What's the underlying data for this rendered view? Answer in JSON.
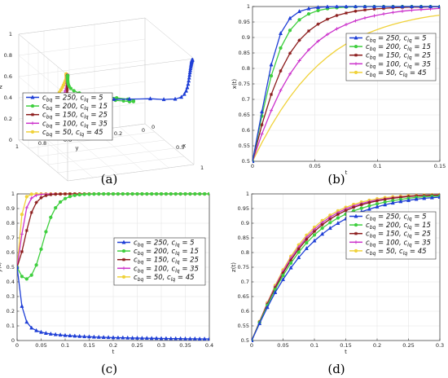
{
  "colors": {
    "s250": "#1f3fd6",
    "s200": "#3fcf3f",
    "s150": "#8b1a1a",
    "s100": "#cc33cc",
    "s50": "#f0d23a",
    "axis": "#444444",
    "grid": "#e2e2e2"
  },
  "legend_entries": [
    "c_bq = 250,  c_lq = 5",
    "c_bq = 200,  c_lq = 15",
    "c_bq = 150,  c_lq = 25",
    "c_bq = 100,  c_lq = 35",
    "c_bq = 50,  c_lq = 45"
  ],
  "chart_data": [
    {
      "panel": "(a)",
      "type": "line",
      "projection": "3d",
      "xlabel": "x",
      "ylabel": "y",
      "zlabel": "z",
      "xlim": [
        0,
        1
      ],
      "ylim": [
        0,
        1
      ],
      "zlim": [
        0,
        1
      ],
      "xticks": [
        "0",
        "0.5",
        "1"
      ],
      "yticks": [
        "1",
        "0.8",
        "0.6",
        "0.4",
        "0.2",
        "0"
      ],
      "zticks": [
        "0",
        "0.2",
        "0.4",
        "0.6",
        "0.8",
        "1"
      ],
      "legend_position": "lower-left",
      "start_point": [
        0.5,
        0.5,
        0.5
      ],
      "end_points": {
        "250": [
          1,
          0,
          1
        ],
        "200": [
          1,
          1,
          1
        ],
        "150": [
          1,
          1,
          1
        ],
        "100": [
          1,
          1,
          1
        ],
        "50": [
          1,
          1,
          1
        ]
      }
    },
    {
      "panel": "(b)",
      "type": "line",
      "xlabel": "t",
      "ylabel": "x(t)",
      "xlim": [
        0,
        0.15
      ],
      "ylim": [
        0.5,
        1
      ],
      "xticks": [
        "0",
        "0.05",
        "0.1",
        "0.15"
      ],
      "yticks": [
        "0.5",
        "0.55",
        "0.6",
        "0.65",
        "0.7",
        "0.75",
        "0.8",
        "0.85",
        "0.9",
        "0.95",
        "1"
      ],
      "legend_position": "center-right",
      "x": [
        0,
        0.0075,
        0.015,
        0.0225,
        0.03,
        0.0375,
        0.045,
        0.0525,
        0.06,
        0.0675,
        0.075,
        0.0825,
        0.09,
        0.0975,
        0.105,
        0.1125,
        0.12,
        0.1275,
        0.135,
        0.1425,
        0.15
      ],
      "series": [
        {
          "name": "c_bq = 250,  c_lq = 5",
          "color_key": "s250",
          "marker": "triangle",
          "values": [
            0.5,
            0.66,
            0.812,
            0.913,
            0.962,
            0.984,
            0.993,
            0.997,
            0.999,
            1.0,
            1.0,
            1.0,
            1.0,
            1.0,
            1.0,
            1.0,
            1.0,
            1.0,
            1.0,
            1.0,
            1.0
          ]
        },
        {
          "name": "c_bq = 200,  c_lq = 15",
          "color_key": "s200",
          "marker": "circle",
          "values": [
            0.5,
            0.646,
            0.776,
            0.866,
            0.923,
            0.957,
            0.976,
            0.987,
            0.993,
            0.996,
            0.998,
            0.999,
            1.0,
            1.0,
            1.0,
            1.0,
            1.0,
            1.0,
            1.0,
            1.0,
            1.0
          ]
        },
        {
          "name": "c_bq = 150,  c_lq = 25",
          "color_key": "s150",
          "marker": "star",
          "values": [
            0.5,
            0.618,
            0.716,
            0.792,
            0.849,
            0.891,
            0.921,
            0.943,
            0.959,
            0.971,
            0.979,
            0.985,
            0.989,
            0.992,
            0.994,
            0.996,
            0.997,
            0.998,
            0.998,
            0.999,
            0.999
          ]
        },
        {
          "name": "c_bq = 100,  c_lq = 35",
          "color_key": "s100",
          "marker": "plus",
          "values": [
            0.5,
            0.588,
            0.664,
            0.729,
            0.782,
            0.825,
            0.86,
            0.888,
            0.91,
            0.928,
            0.942,
            0.954,
            0.963,
            0.97,
            0.976,
            0.981,
            0.985,
            0.988,
            0.99,
            0.992,
            0.994
          ]
        },
        {
          "name": "c_bq = 50,  c_lq = 45",
          "color_key": "s50",
          "marker": "none",
          "values": [
            0.5,
            0.56,
            0.615,
            0.664,
            0.708,
            0.747,
            0.781,
            0.811,
            0.837,
            0.86,
            0.879,
            0.896,
            0.91,
            0.922,
            0.933,
            0.942,
            0.95,
            0.957,
            0.963,
            0.968,
            0.972
          ]
        }
      ]
    },
    {
      "panel": "(c)",
      "type": "line",
      "xlabel": "t",
      "ylabel": "y(t)",
      "xlim": [
        0,
        0.4
      ],
      "ylim": [
        0,
        1
      ],
      "xticks": [
        "0",
        "0.05",
        "0.1",
        "0.15",
        "0.2",
        "0.25",
        "0.3",
        "0.35",
        "0.4"
      ],
      "yticks": [
        "0",
        "0.1",
        "0.2",
        "0.3",
        "0.4",
        "0.5",
        "0.6",
        "0.7",
        "0.8",
        "0.9",
        "1"
      ],
      "legend_position": "center-left",
      "x": [
        0,
        0.01,
        0.02,
        0.03,
        0.04,
        0.05,
        0.06,
        0.07,
        0.08,
        0.09,
        0.1,
        0.11,
        0.12,
        0.13,
        0.14,
        0.15,
        0.16,
        0.17,
        0.18,
        0.19,
        0.2,
        0.21,
        0.22,
        0.23,
        0.24,
        0.25,
        0.26,
        0.27,
        0.28,
        0.29,
        0.3,
        0.31,
        0.32,
        0.33,
        0.34,
        0.35,
        0.36,
        0.37,
        0.38,
        0.39,
        0.4
      ],
      "series": [
        {
          "name": "c_bq = 250,  c_lq = 5",
          "color_key": "s250",
          "marker": "triangle",
          "values": [
            0.5,
            0.234,
            0.126,
            0.086,
            0.068,
            0.057,
            0.05,
            0.045,
            0.041,
            0.038,
            0.035,
            0.033,
            0.031,
            0.029,
            0.027,
            0.026,
            0.024,
            0.023,
            0.022,
            0.021,
            0.02,
            0.019,
            0.019,
            0.018,
            0.017,
            0.017,
            0.016,
            0.016,
            0.015,
            0.015,
            0.014,
            0.014,
            0.013,
            0.013,
            0.013,
            0.012,
            0.012,
            0.012,
            0.011,
            0.011,
            0.011
          ]
        },
        {
          "name": "c_bq = 200,  c_lq = 15",
          "color_key": "s200",
          "marker": "circle",
          "values": [
            0.5,
            0.437,
            0.42,
            0.446,
            0.515,
            0.623,
            0.742,
            0.84,
            0.905,
            0.945,
            0.968,
            0.982,
            0.99,
            0.994,
            0.997,
            0.998,
            0.999,
            1.0,
            1.0,
            1.0,
            1.0,
            1.0,
            1.0,
            1.0,
            1.0,
            1.0,
            1.0,
            1.0,
            1.0,
            1.0,
            1.0,
            1.0,
            1.0,
            1.0,
            1.0,
            1.0,
            1.0,
            1.0,
            1.0,
            1.0,
            1.0
          ]
        },
        {
          "name": "c_bq = 150,  c_lq = 25",
          "color_key": "s150",
          "marker": "star",
          "values": [
            0.5,
            0.606,
            0.75,
            0.873,
            0.941,
            0.974,
            0.989,
            0.995,
            0.998,
            0.999,
            1.0,
            1.0,
            1.0,
            1.0,
            1.0,
            1.0,
            1.0,
            1.0,
            1.0,
            1.0,
            1.0,
            1.0,
            1.0,
            1.0,
            1.0,
            1.0,
            1.0,
            1.0,
            1.0,
            1.0,
            1.0,
            1.0,
            1.0,
            1.0,
            1.0,
            1.0,
            1.0,
            1.0,
            1.0,
            1.0,
            1.0
          ]
        },
        {
          "name": "c_bq = 100,  c_lq = 35",
          "color_key": "s100",
          "marker": "plus",
          "values": [
            0.5,
            0.726,
            0.906,
            0.971,
            0.991,
            0.997,
            0.999,
            1.0,
            1.0,
            1.0,
            1.0,
            1.0,
            1.0,
            1.0,
            1.0,
            1.0,
            1.0,
            1.0,
            1.0,
            1.0,
            1.0,
            1.0,
            1.0,
            1.0,
            1.0,
            1.0,
            1.0,
            1.0,
            1.0,
            1.0,
            1.0,
            1.0,
            1.0,
            1.0,
            1.0,
            1.0,
            1.0,
            1.0,
            1.0,
            1.0,
            1.0
          ]
        },
        {
          "name": "c_bq = 50,  c_lq = 45",
          "color_key": "s50",
          "marker": "circle",
          "values": [
            0.5,
            0.86,
            0.981,
            0.998,
            1.0,
            1.0,
            1.0,
            1.0,
            1.0,
            1.0,
            1.0,
            1.0,
            1.0,
            1.0,
            1.0,
            1.0,
            1.0,
            1.0,
            1.0,
            1.0,
            1.0,
            1.0,
            1.0,
            1.0,
            1.0,
            1.0,
            1.0,
            1.0,
            1.0,
            1.0,
            1.0,
            1.0,
            1.0,
            1.0,
            1.0,
            1.0,
            1.0,
            1.0,
            1.0,
            1.0,
            1.0
          ]
        }
      ]
    },
    {
      "panel": "(d)",
      "type": "line",
      "xlabel": "t",
      "ylabel": "z(t)",
      "xlim": [
        0,
        0.3
      ],
      "ylim": [
        0.5,
        1
      ],
      "xticks": [
        "0",
        "0.05",
        "0.1",
        "0.15",
        "0.2",
        "0.25",
        "0.3"
      ],
      "yticks": [
        "0.5",
        "0.55",
        "0.6",
        "0.65",
        "0.7",
        "0.75",
        "0.8",
        "0.85",
        "0.9",
        "0.95",
        "1"
      ],
      "legend_position": "center-right",
      "x": [
        0,
        0.0125,
        0.025,
        0.0375,
        0.05,
        0.0625,
        0.075,
        0.0875,
        0.1,
        0.1125,
        0.125,
        0.1375,
        0.15,
        0.1625,
        0.175,
        0.1875,
        0.2,
        0.2125,
        0.225,
        0.2375,
        0.25,
        0.2625,
        0.275,
        0.2875,
        0.3
      ],
      "series": [
        {
          "name": "c_bq = 250,  c_lq = 5",
          "color_key": "s250",
          "marker": "triangle",
          "values": [
            0.5,
            0.558,
            0.613,
            0.664,
            0.708,
            0.748,
            0.783,
            0.814,
            0.84,
            0.863,
            0.883,
            0.9,
            0.915,
            0.928,
            0.939,
            0.948,
            0.956,
            0.963,
            0.969,
            0.974,
            0.978,
            0.982,
            0.985,
            0.987,
            0.989
          ]
        },
        {
          "name": "c_bq = 200,  c_lq = 15",
          "color_key": "s200",
          "marker": "circle",
          "values": [
            0.5,
            0.561,
            0.62,
            0.674,
            0.722,
            0.764,
            0.801,
            0.833,
            0.86,
            0.883,
            0.902,
            0.918,
            0.931,
            0.942,
            0.951,
            0.959,
            0.966,
            0.972,
            0.977,
            0.981,
            0.985,
            0.988,
            0.99,
            0.992,
            0.993
          ]
        },
        {
          "name": "c_bq = 150,  c_lq = 25",
          "color_key": "s150",
          "marker": "star",
          "values": [
            0.5,
            0.563,
            0.624,
            0.68,
            0.73,
            0.774,
            0.812,
            0.845,
            0.872,
            0.895,
            0.914,
            0.93,
            0.943,
            0.954,
            0.963,
            0.97,
            0.976,
            0.981,
            0.985,
            0.988,
            0.991,
            0.993,
            0.994,
            0.995,
            0.996
          ]
        },
        {
          "name": "c_bq = 100,  c_lq = 35",
          "color_key": "s100",
          "marker": "plus",
          "values": [
            0.5,
            0.564,
            0.627,
            0.684,
            0.736,
            0.781,
            0.819,
            0.852,
            0.879,
            0.902,
            0.921,
            0.936,
            0.949,
            0.959,
            0.967,
            0.974,
            0.979,
            0.983,
            0.987,
            0.99,
            0.992,
            0.994,
            0.995,
            0.996,
            0.997
          ]
        },
        {
          "name": "c_bq = 50,  c_lq = 45",
          "color_key": "s50",
          "marker": "circle",
          "values": [
            0.5,
            0.565,
            0.629,
            0.688,
            0.741,
            0.787,
            0.826,
            0.859,
            0.886,
            0.909,
            0.927,
            0.942,
            0.954,
            0.964,
            0.972,
            0.978,
            0.983,
            0.987,
            0.99,
            0.992,
            0.994,
            0.995,
            0.996,
            0.997,
            0.998
          ]
        }
      ]
    }
  ]
}
